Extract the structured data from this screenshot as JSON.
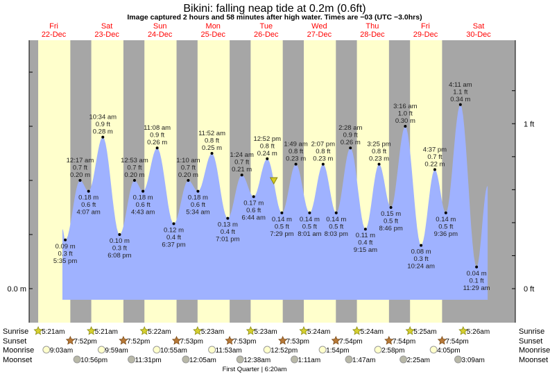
{
  "chart_data": {
    "type": "area",
    "title": "Bikini: falling  neap tide at 0.2m (0.6ft)",
    "subtitle": "Image captured 2 hours and 58 minutes after high water. Times are −03 (UTC −3.0hrs)",
    "days": [
      {
        "dow": "Fri",
        "date": "22-Dec"
      },
      {
        "dow": "Sat",
        "date": "23-Dec"
      },
      {
        "dow": "Sun",
        "date": "24-Dec"
      },
      {
        "dow": "Mon",
        "date": "25-Dec"
      },
      {
        "dow": "Tue",
        "date": "26-Dec"
      },
      {
        "dow": "Wed",
        "date": "27-Dec"
      },
      {
        "dow": "Thu",
        "date": "28-Dec"
      },
      {
        "dow": "Fri",
        "date": "29-Dec"
      },
      {
        "dow": "Sat",
        "date": "30-Dec"
      }
    ],
    "y_axis_left": {
      "label": "0.0 m",
      "unit": "m"
    },
    "y_axis_right": [
      {
        "label": "1 ft",
        "value_ft": 1
      },
      {
        "label": "0 ft",
        "value_ft": 0
      }
    ],
    "current": {
      "day": 4,
      "time": "3:50 pm",
      "height_m": 0.2
    },
    "extremes": [
      {
        "day": 0,
        "time": "5:35 pm",
        "m": "0.09 m",
        "ft": "0.3 ft",
        "h": 0.09,
        "type": "low"
      },
      {
        "day": 1,
        "time": "12:17 am",
        "m": "0.20 m",
        "ft": "0.7 ft",
        "h": 0.2,
        "type": "high"
      },
      {
        "day": 1,
        "time": "4:07 am",
        "m": "0.18 m",
        "ft": "0.6 ft",
        "h": 0.18,
        "type": "low"
      },
      {
        "day": 1,
        "time": "10:34 am",
        "m": "0.28 m",
        "ft": "0.9 ft",
        "h": 0.28,
        "type": "high"
      },
      {
        "day": 1,
        "time": "6:08 pm",
        "m": "0.10 m",
        "ft": "0.3 ft",
        "h": 0.1,
        "type": "low"
      },
      {
        "day": 2,
        "time": "12:53 am",
        "m": "0.20 m",
        "ft": "0.7 ft",
        "h": 0.2,
        "type": "high"
      },
      {
        "day": 2,
        "time": "4:43 am",
        "m": "0.18 m",
        "ft": "0.6 ft",
        "h": 0.18,
        "type": "low"
      },
      {
        "day": 2,
        "time": "11:08 am",
        "m": "0.26 m",
        "ft": "0.9 ft",
        "h": 0.26,
        "type": "high"
      },
      {
        "day": 2,
        "time": "6:37 pm",
        "m": "0.12 m",
        "ft": "0.4 ft",
        "h": 0.12,
        "type": "low"
      },
      {
        "day": 3,
        "time": "1:10 am",
        "m": "0.20 m",
        "ft": "0.7 ft",
        "h": 0.2,
        "type": "high"
      },
      {
        "day": 3,
        "time": "5:34 am",
        "m": "0.18 m",
        "ft": "0.6 ft",
        "h": 0.18,
        "type": "low"
      },
      {
        "day": 3,
        "time": "11:52 am",
        "m": "0.25 m",
        "ft": "0.8 ft",
        "h": 0.25,
        "type": "high"
      },
      {
        "day": 3,
        "time": "7:01 pm",
        "m": "0.13 m",
        "ft": "0.4 ft",
        "h": 0.13,
        "type": "low"
      },
      {
        "day": 4,
        "time": "1:24 am",
        "m": "0.21 m",
        "ft": "0.7 ft",
        "h": 0.21,
        "type": "high"
      },
      {
        "day": 4,
        "time": "6:44 am",
        "m": "0.17 m",
        "ft": "0.6 ft",
        "h": 0.17,
        "type": "low"
      },
      {
        "day": 4,
        "time": "12:52 pm",
        "m": "0.24 m",
        "ft": "0.8 ft",
        "h": 0.24,
        "type": "high"
      },
      {
        "day": 4,
        "time": "7:29 pm",
        "m": "0.14 m",
        "ft": "0.5 ft",
        "h": 0.14,
        "type": "low"
      },
      {
        "day": 5,
        "time": "1:49 am",
        "m": "0.23 m",
        "ft": "0.8 ft",
        "h": 0.23,
        "type": "high"
      },
      {
        "day": 5,
        "time": "8:01 am",
        "m": "0.14 m",
        "ft": "0.5 ft",
        "h": 0.14,
        "type": "low"
      },
      {
        "day": 5,
        "time": "2:07 pm",
        "m": "0.23 m",
        "ft": "0.8 ft",
        "h": 0.23,
        "type": "high"
      },
      {
        "day": 5,
        "time": "8:03 pm",
        "m": "0.14 m",
        "ft": "0.5 ft",
        "h": 0.14,
        "type": "low"
      },
      {
        "day": 6,
        "time": "2:28 am",
        "m": "0.26 m",
        "ft": "0.9 ft",
        "h": 0.26,
        "type": "high"
      },
      {
        "day": 6,
        "time": "9:15 am",
        "m": "0.11 m",
        "ft": "0.4 ft",
        "h": 0.11,
        "type": "low"
      },
      {
        "day": 6,
        "time": "3:25 pm",
        "m": "0.23 m",
        "ft": "0.8 ft",
        "h": 0.23,
        "type": "high"
      },
      {
        "day": 6,
        "time": "8:46 pm",
        "m": "0.15 m",
        "ft": "0.5 ft",
        "h": 0.15,
        "type": "low"
      },
      {
        "day": 7,
        "time": "3:16 am",
        "m": "0.30 m",
        "ft": "1.0 ft",
        "h": 0.3,
        "type": "high"
      },
      {
        "day": 7,
        "time": "10:24 am",
        "m": "0.08 m",
        "ft": "0.3 ft",
        "h": 0.08,
        "type": "low"
      },
      {
        "day": 7,
        "time": "4:37 pm",
        "m": "0.22 m",
        "ft": "0.7 ft",
        "h": 0.22,
        "type": "high"
      },
      {
        "day": 7,
        "time": "9:36 pm",
        "m": "0.14 m",
        "ft": "0.5 ft",
        "h": 0.14,
        "type": "low"
      },
      {
        "day": 8,
        "time": "4:11 am",
        "m": "0.34 m",
        "ft": "1.1 ft",
        "h": 0.34,
        "type": "high"
      },
      {
        "day": 8,
        "time": "11:29 am",
        "m": "0.04 m",
        "ft": "0.1 ft",
        "h": 0.04,
        "type": "low"
      }
    ],
    "colors": {
      "day": "#ffffcc",
      "night": "#a6a6a6",
      "water": "#9fb2ff",
      "date": "#ff0000"
    }
  },
  "almanac": {
    "labels": {
      "sunrise": "Sunrise",
      "sunset": "Sunset",
      "moonrise": "Moonrise",
      "moonset": "Moonset"
    },
    "sunrise": [
      {
        "day": 0,
        "time": "5:21am"
      },
      {
        "day": 1,
        "time": "5:21am"
      },
      {
        "day": 2,
        "time": "5:22am"
      },
      {
        "day": 3,
        "time": "5:23am"
      },
      {
        "day": 4,
        "time": "5:23am"
      },
      {
        "day": 5,
        "time": "5:24am"
      },
      {
        "day": 6,
        "time": "5:24am"
      },
      {
        "day": 7,
        "time": "5:25am"
      },
      {
        "day": 8,
        "time": "5:26am"
      }
    ],
    "sunset": [
      {
        "day": 0,
        "time": "7:52pm"
      },
      {
        "day": 1,
        "time": "7:52pm"
      },
      {
        "day": 2,
        "time": "7:53pm"
      },
      {
        "day": 3,
        "time": "7:53pm"
      },
      {
        "day": 4,
        "time": "7:53pm"
      },
      {
        "day": 5,
        "time": "7:54pm"
      },
      {
        "day": 6,
        "time": "7:54pm"
      },
      {
        "day": 7,
        "time": "7:54pm"
      }
    ],
    "moonrise": [
      {
        "day": 0,
        "time": "9:03am"
      },
      {
        "day": 1,
        "time": "9:59am"
      },
      {
        "day": 2,
        "time": "10:55am"
      },
      {
        "day": 3,
        "time": "11:53am"
      },
      {
        "day": 4,
        "time": "12:52pm"
      },
      {
        "day": 5,
        "time": "1:54pm"
      },
      {
        "day": 6,
        "time": "2:58pm"
      },
      {
        "day": 7,
        "time": "4:05pm"
      }
    ],
    "moonset": [
      {
        "day": 0,
        "time": "10:56pm"
      },
      {
        "day": 1,
        "time": "11:31pm"
      },
      {
        "day": 3,
        "time": "12:05am"
      },
      {
        "day": 4,
        "time": "12:38am"
      },
      {
        "day": 5,
        "time": "1:11am"
      },
      {
        "day": 6,
        "time": "1:47am"
      },
      {
        "day": 7,
        "time": "2:25am"
      },
      {
        "day": 8,
        "time": "3:09am"
      }
    ],
    "moon_phase": "First Quarter | 6:20am"
  }
}
